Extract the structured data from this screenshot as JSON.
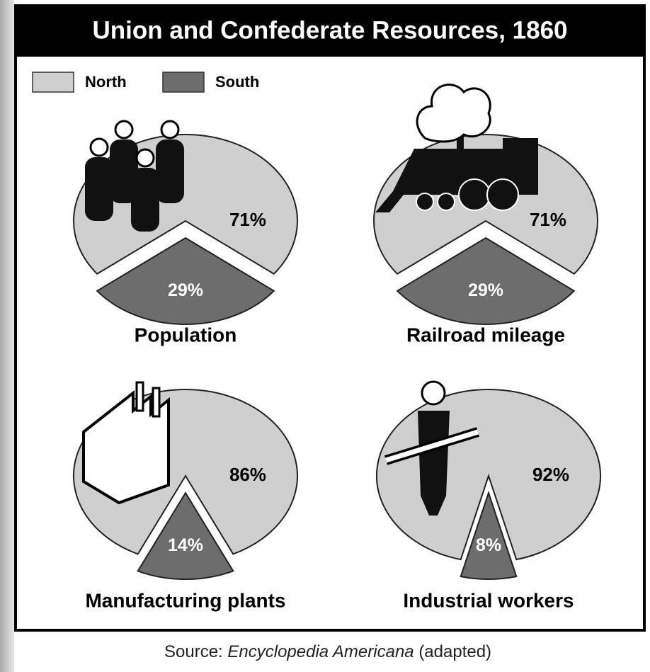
{
  "title": "Union and Confederate Resources, 1860",
  "legend": [
    {
      "name": "North",
      "color": "#cfcfcf"
    },
    {
      "name": "South",
      "color": "#6d6d6d"
    }
  ],
  "source": {
    "prefix": "Source:",
    "work": "Encyclopedia Americana",
    "suffix": "(adapted)"
  },
  "chart_data": [
    {
      "type": "pie",
      "title": "Population",
      "values": [
        71,
        29
      ],
      "value_labels": [
        "71%",
        "29%"
      ]
    },
    {
      "type": "pie",
      "title": "Railroad mileage",
      "values": [
        71,
        29
      ],
      "value_labels": [
        "71%",
        "29%"
      ]
    },
    {
      "type": "pie",
      "title": "Manufacturing plants",
      "values": [
        86,
        14
      ],
      "value_labels": [
        "86%",
        "14%"
      ]
    },
    {
      "type": "pie",
      "title": "Industrial workers",
      "values": [
        92,
        8
      ],
      "value_labels": [
        "92%",
        "8%"
      ]
    }
  ]
}
